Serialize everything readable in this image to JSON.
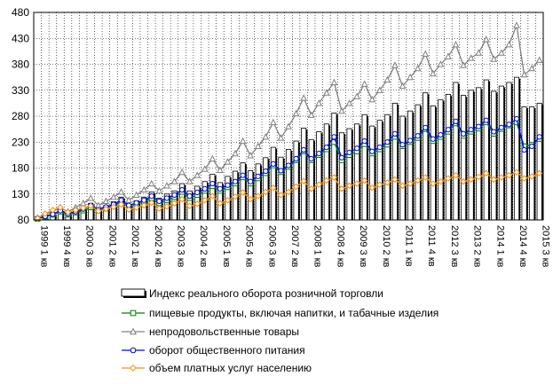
{
  "chart_data": {
    "type": "bar",
    "ylim": [
      80,
      480
    ],
    "yticks": [
      80,
      130,
      180,
      230,
      280,
      330,
      380,
      430,
      480
    ],
    "grid": "dotted",
    "legend_position": "bottom",
    "x": [
      "1999 1 кв",
      "1999 2 кв",
      "1999 3 кв",
      "1999 4 кв",
      "2000 1 кв",
      "2000 2 кв",
      "2000 3 кв",
      "2000 4 кв",
      "2001 1 кв",
      "2001 2 кв",
      "2001 3 кв",
      "2001 4 кв",
      "2002 1 кв",
      "2002 2 кв",
      "2002 3 кв",
      "2002 4 кв",
      "2003 1 кв",
      "2003 2 кв",
      "2003 3 кв",
      "2003 4 кв",
      "2004 1 кв",
      "2004 2 кв",
      "2004 3 кв",
      "2004 4 кв",
      "2005 1 кв",
      "2005 2 кв",
      "2005 3 кв",
      "2005 4 кв",
      "2006 1 кв",
      "2006 2 кв",
      "2006 3 кв",
      "2006 4 кв",
      "2007 1 кв",
      "2007 2 кв",
      "2007 3 кв",
      "2007 4 кв",
      "2008 1 кв",
      "2008 2 кв",
      "2008 3 кв",
      "2008 4 кв",
      "2009 1 кв",
      "2009 2 кв",
      "2009 3 кв",
      "2009 4 кв",
      "2010 1 кв",
      "2010 2 кв",
      "2010 3 кв",
      "2010 4 кв",
      "2011 1 кв",
      "2011 2 кв",
      "2011 3 кв",
      "2011 4 кв",
      "2012 1 кв",
      "2012 2 кв",
      "2012 3 кв",
      "2012 4 кв",
      "2013 1 кв",
      "2013 2 кв",
      "2013 3 кв",
      "2013 4 кв",
      "2014 1 кв",
      "2014 2 кв",
      "2014 3 кв",
      "2014 4 кв",
      "2015 1 кв",
      "2015 2 кв",
      "2015 3 кв"
    ],
    "xtick_labels": [
      "1999 1 кв",
      "1999 4 кв",
      "2000 3 кв",
      "2001 2 кв",
      "2002 1 кв",
      "2002 4 кв",
      "2003 3 кв",
      "2004 2 кв",
      "2005 1 кв",
      "2005 4 кв",
      "2006 3 кв",
      "2007 2 кв",
      "2008 1 кв",
      "2008 4 кв",
      "2009 3 кв",
      "2010 2 кв",
      "2011 1 кв",
      "2011 4 кв",
      "2012 3 кв",
      "2013 2 кв",
      "2014 1 кв",
      "2014 4 кв",
      "2015 3 кв"
    ],
    "series": [
      {
        "name": "Индекс реального оборота розничной торговли",
        "kind": "bar",
        "color": "#000000",
        "values": [
          80,
          85,
          92,
          100,
          92,
          99,
          104,
          112,
          102,
          108,
          115,
          124,
          110,
          117,
          124,
          134,
          122,
          130,
          136,
          150,
          136,
          145,
          154,
          168,
          152,
          164,
          174,
          190,
          175,
          188,
          200,
          220,
          201,
          216,
          232,
          257,
          235,
          250,
          265,
          286,
          248,
          256,
          265,
          283,
          261,
          272,
          283,
          305,
          280,
          290,
          302,
          325,
          300,
          312,
          322,
          345,
          320,
          330,
          335,
          350,
          328,
          338,
          345,
          355,
          298,
          298,
          305
        ]
      },
      {
        "name": "пищевые продукты, включая напитки, и табачные изделия",
        "kind": "line",
        "color": "#008000",
        "marker": "square",
        "values": [
          82,
          86,
          90,
          96,
          90,
          94,
          98,
          104,
          98,
          102,
          108,
          115,
          105,
          110,
          115,
          122,
          112,
          118,
          124,
          134,
          122,
          128,
          136,
          145,
          136,
          143,
          150,
          162,
          150,
          160,
          170,
          185,
          172,
          182,
          195,
          212,
          195,
          205,
          216,
          230,
          195,
          205,
          212,
          226,
          208,
          216,
          225,
          240,
          222,
          230,
          238,
          255,
          232,
          240,
          250,
          266,
          242,
          250,
          256,
          268,
          246,
          255,
          262,
          268,
          222,
          225,
          236
        ]
      },
      {
        "name": "непродовольственные товары",
        "kind": "line",
        "color": "#808080",
        "marker": "triangle",
        "values": [
          84,
          90,
          96,
          104,
          96,
          104,
          112,
          122,
          108,
          116,
          124,
          134,
          118,
          128,
          138,
          150,
          136,
          146,
          154,
          172,
          154,
          166,
          178,
          198,
          176,
          192,
          208,
          232,
          204,
          222,
          240,
          268,
          238,
          260,
          285,
          315,
          282,
          305,
          325,
          345,
          290,
          305,
          318,
          342,
          312,
          330,
          350,
          378,
          338,
          355,
          372,
          400,
          362,
          380,
          395,
          418,
          378,
          392,
          402,
          428,
          390,
          402,
          418,
          455,
          360,
          372,
          388
        ]
      },
      {
        "name": "оборот общественного питания",
        "kind": "line",
        "color": "#0000FF",
        "marker": "circle",
        "values": [
          83,
          87,
          91,
          98,
          92,
          96,
          101,
          108,
          100,
          105,
          110,
          118,
          108,
          113,
          118,
          126,
          116,
          122,
          128,
          138,
          126,
          133,
          140,
          150,
          140,
          147,
          154,
          166,
          154,
          164,
          174,
          188,
          175,
          185,
          198,
          215,
          198,
          208,
          220,
          240,
          200,
          210,
          218,
          232,
          212,
          220,
          230,
          246,
          225,
          233,
          242,
          258,
          236,
          244,
          254,
          270,
          246,
          254,
          260,
          272,
          250,
          258,
          264,
          275,
          215,
          222,
          240
        ]
      },
      {
        "name": "объем платных услуг населению",
        "kind": "line",
        "color": "#FF8C00",
        "marker": "diamond",
        "values": [
          83,
          92,
          99,
          104,
          95,
          99,
          103,
          107,
          97,
          101,
          105,
          110,
          100,
          104,
          108,
          113,
          102,
          106,
          112,
          120,
          107,
          111,
          118,
          126,
          112,
          118,
          125,
          133,
          120,
          126,
          134,
          142,
          128,
          134,
          144,
          155,
          140,
          148,
          156,
          162,
          140,
          146,
          150,
          156,
          142,
          148,
          152,
          158,
          146,
          150,
          156,
          162,
          150,
          154,
          160,
          166,
          154,
          158,
          163,
          170,
          158,
          162,
          166,
          172,
          160,
          164,
          170
        ]
      }
    ]
  }
}
